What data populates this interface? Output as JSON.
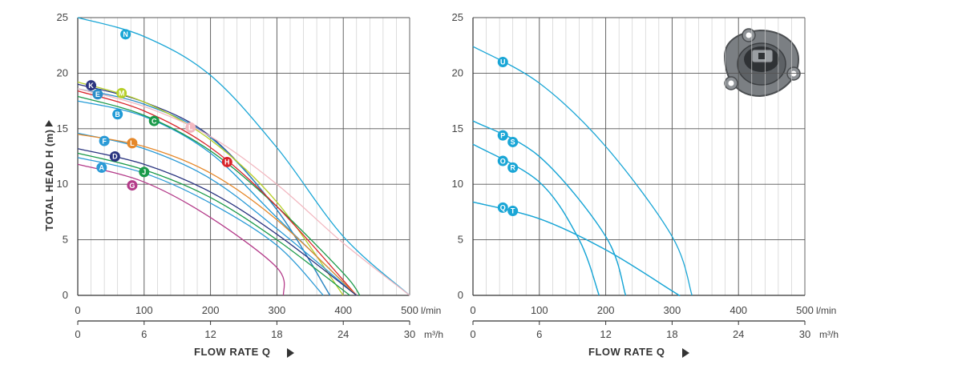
{
  "labels": {
    "yaxis": "TOTAL HEAD H (m)",
    "xaxis": "FLOW RATE Q",
    "unit_lmin": "l/min",
    "unit_m3h": "m³/h"
  },
  "chart_data": [
    {
      "type": "line",
      "ylabel": "TOTAL HEAD H (m)",
      "xlabel": "FLOW RATE Q",
      "xlim": [
        0,
        500
      ],
      "ylim": [
        0,
        25
      ],
      "x_unit_primary": "l/min",
      "x_unit_secondary": "m³/h",
      "x_ticks_primary": [
        "0",
        "100",
        "200",
        "300",
        "400",
        "500"
      ],
      "x_ticks_secondary": [
        "0",
        "6",
        "12",
        "18",
        "24",
        "30"
      ],
      "y_ticks": [
        "0",
        "5",
        "10",
        "15",
        "20",
        "25"
      ],
      "grid": true,
      "series": [
        {
          "name": "N",
          "color": "#1aa6d6",
          "label_at": [
            72,
            23.5
          ],
          "points": [
            [
              0,
              25
            ],
            [
              100,
              23.3
            ],
            [
              200,
              19.8
            ],
            [
              300,
              13.3
            ],
            [
              400,
              5.3
            ],
            [
              500,
              0
            ]
          ]
        },
        {
          "name": "K",
          "color": "#2b3580",
          "label_at": [
            20,
            18.9
          ],
          "points": [
            [
              0,
              19
            ],
            [
              100,
              17.4
            ],
            [
              200,
              14.3
            ],
            [
              300,
              7.7
            ],
            [
              380,
              0
            ]
          ]
        },
        {
          "name": "E",
          "color": "#2a8ec9",
          "label_at": [
            30,
            18.1
          ],
          "points": [
            [
              0,
              18.6
            ],
            [
              100,
              17.2
            ],
            [
              200,
              14.2
            ],
            [
              300,
              7.7
            ],
            [
              380,
              0
            ]
          ]
        },
        {
          "name": "M",
          "color": "#b7cf2a",
          "label_at": [
            66,
            18.2
          ],
          "points": [
            [
              0,
              19.2
            ],
            [
              100,
              17.4
            ],
            [
              200,
              14
            ],
            [
              300,
              8.4
            ],
            [
              400,
              0
            ]
          ]
        },
        {
          "name": "B",
          "color": "#1f9ad6",
          "label_at": [
            60,
            16.3
          ],
          "points": [
            [
              0,
              17.5
            ],
            [
              100,
              16.1
            ],
            [
              200,
              12.8
            ],
            [
              300,
              7
            ],
            [
              420,
              0
            ]
          ]
        },
        {
          "name": "C",
          "color": "#1b9a4a",
          "label_at": [
            115,
            15.7
          ],
          "points": [
            [
              0,
              17.9
            ],
            [
              100,
              16.2
            ],
            [
              200,
              13
            ],
            [
              300,
              8
            ],
            [
              400,
              2
            ],
            [
              425,
              0
            ]
          ]
        },
        {
          "name": "L",
          "color": "#f2b8c0",
          "label_at": [
            170,
            15.1
          ],
          "points": [
            [
              0,
              18.6
            ],
            [
              100,
              17
            ],
            [
              200,
              14.3
            ],
            [
              300,
              10
            ],
            [
              400,
              4.7
            ],
            [
              500,
              0
            ]
          ]
        },
        {
          "name": "H",
          "color": "#d9242a",
          "label_at": [
            225,
            12
          ],
          "points": [
            [
              0,
              18.4
            ],
            [
              100,
              16.6
            ],
            [
              200,
              13.3
            ],
            [
              300,
              8
            ],
            [
              420,
              0
            ]
          ]
        },
        {
          "name": "F",
          "color": "#2a9ad6",
          "label_at": [
            40,
            13.9
          ],
          "points": [
            [
              0,
              14.6
            ],
            [
              100,
              13.2
            ],
            [
              200,
              10.5
            ],
            [
              300,
              6
            ],
            [
              420,
              0
            ]
          ]
        },
        {
          "name": "L",
          "color": "#e5882a",
          "label_at": [
            82,
            13.7
          ],
          "points": [
            [
              0,
              14.5
            ],
            [
              100,
              13.4
            ],
            [
              200,
              11
            ],
            [
              300,
              6.8
            ],
            [
              420,
              0
            ]
          ]
        },
        {
          "name": "D",
          "color": "#2b3580",
          "label_at": [
            56,
            12.5
          ],
          "points": [
            [
              0,
              13.2
            ],
            [
              100,
              11.8
            ],
            [
              200,
              9.3
            ],
            [
              300,
              5.5
            ],
            [
              420,
              0
            ]
          ]
        },
        {
          "name": "A",
          "color": "#2a9ad6",
          "label_at": [
            36,
            11.5
          ],
          "points": [
            [
              0,
              12.4
            ],
            [
              100,
              11
            ],
            [
              200,
              8.3
            ],
            [
              300,
              4.5
            ],
            [
              370,
              0
            ]
          ]
        },
        {
          "name": "J",
          "color": "#1b9a4a",
          "label_at": [
            100,
            11.1
          ],
          "points": [
            [
              0,
              12.8
            ],
            [
              100,
              11.3
            ],
            [
              200,
              8.8
            ],
            [
              300,
              5
            ],
            [
              410,
              0
            ]
          ]
        },
        {
          "name": "G",
          "color": "#b43c8a",
          "label_at": [
            82,
            9.9
          ],
          "points": [
            [
              0,
              11.8
            ],
            [
              100,
              10.2
            ],
            [
              200,
              7
            ],
            [
              300,
              2.5
            ],
            [
              310,
              0
            ]
          ]
        }
      ]
    },
    {
      "type": "line",
      "ylabel": "",
      "xlabel": "FLOW RATE Q",
      "xlim": [
        0,
        500
      ],
      "ylim": [
        0,
        25
      ],
      "x_unit_primary": "l/min",
      "x_unit_secondary": "m³/h",
      "x_ticks_primary": [
        "0",
        "100",
        "200",
        "300",
        "400",
        "500"
      ],
      "x_ticks_secondary": [
        "0",
        "6",
        "12",
        "18",
        "24",
        "30"
      ],
      "y_ticks": [
        "0",
        "5",
        "10",
        "15",
        "20",
        "25"
      ],
      "grid": true,
      "series": [
        {
          "name": "U",
          "color": "#1aa6d6",
          "label_at": [
            45,
            21
          ],
          "points": [
            [
              0,
              22.4
            ],
            [
              100,
              19.1
            ],
            [
              200,
              13.4
            ],
            [
              300,
              5.3
            ],
            [
              330,
              0
            ]
          ]
        },
        {
          "name": "P",
          "color": "#1aa6d6",
          "label_at": [
            45,
            14.4
          ],
          "points": [
            [
              0,
              15.7
            ],
            [
              100,
              12.5
            ],
            [
              200,
              5.3
            ],
            [
              230,
              0
            ]
          ]
        },
        {
          "name": "S",
          "color": "#1aa6d6",
          "label_at": [
            60,
            13.8
          ],
          "points": [
            [
              0,
              15.7
            ],
            [
              100,
              12.5
            ],
            [
              200,
              5.3
            ],
            [
              230,
              0
            ]
          ]
        },
        {
          "name": "O",
          "color": "#1aa6d6",
          "label_at": [
            45,
            12.1
          ],
          "points": [
            [
              0,
              13.6
            ],
            [
              100,
              10.2
            ],
            [
              160,
              5
            ],
            [
              190,
              0
            ]
          ]
        },
        {
          "name": "R",
          "color": "#1aa6d6",
          "label_at": [
            60,
            11.5
          ],
          "points": [
            [
              0,
              13.6
            ],
            [
              100,
              10.2
            ],
            [
              160,
              5
            ],
            [
              190,
              0
            ]
          ]
        },
        {
          "name": "Q",
          "color": "#1aa6d6",
          "label_at": [
            45,
            7.9
          ],
          "points": [
            [
              0,
              8.4
            ],
            [
              100,
              6.9
            ],
            [
              200,
              4.1
            ],
            [
              300,
              0.4
            ],
            [
              310,
              0
            ]
          ]
        },
        {
          "name": "T",
          "color": "#1aa6d6",
          "label_at": [
            60,
            7.6
          ],
          "points": [
            [
              0,
              8.4
            ],
            [
              100,
              6.9
            ],
            [
              200,
              4.1
            ],
            [
              300,
              0.4
            ],
            [
              310,
              0
            ]
          ]
        }
      ]
    }
  ]
}
